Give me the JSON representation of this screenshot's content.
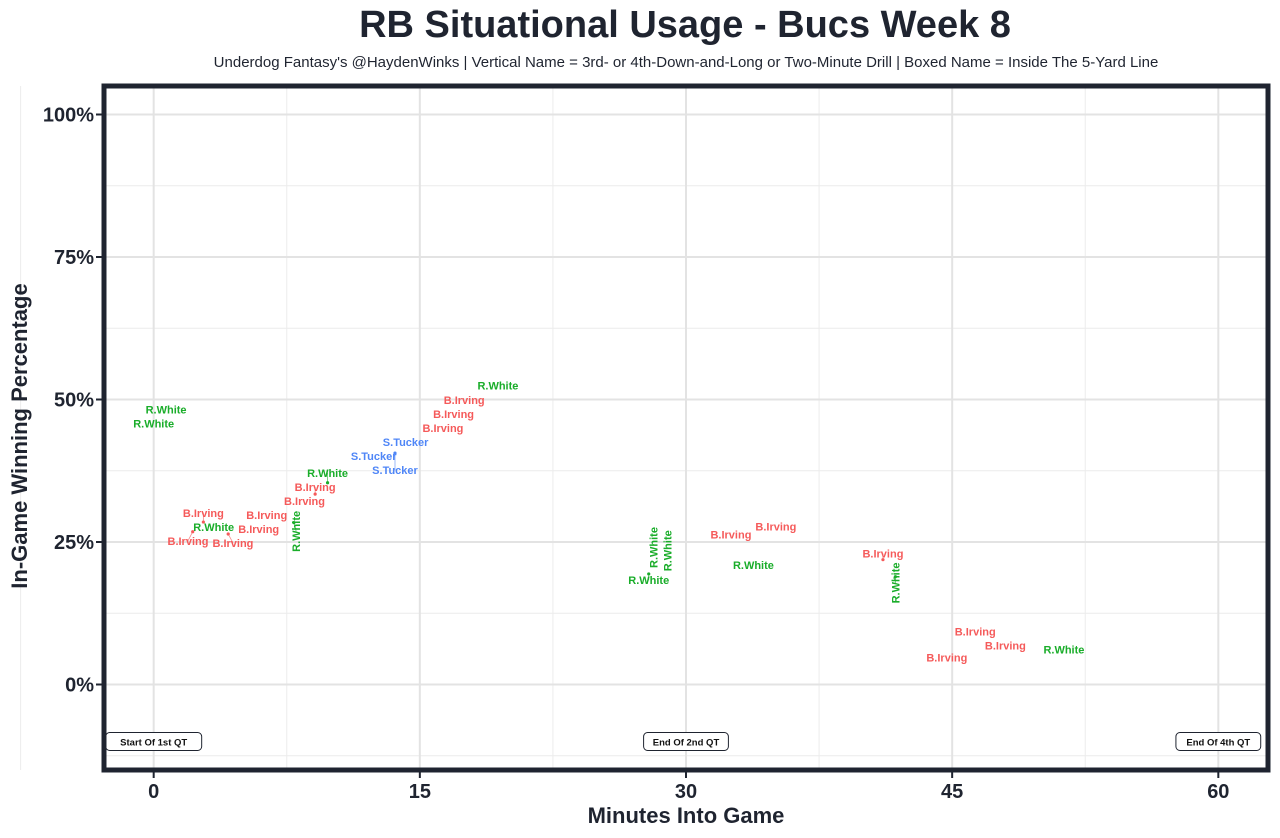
{
  "chart_data": {
    "type": "scatter",
    "title": "RB Situational Usage - Bucs Week 8",
    "subtitle": "Underdog Fantasy's @HaydenWinks | Vertical Name = 3rd- or 4th-Down-and-Long or Two-Minute Drill | Boxed Name = Inside The 5-Yard Line",
    "xlabel": "Minutes Into Game",
    "ylabel": "In-Game Winning Percentage",
    "xlim": [
      -2.8,
      62.8
    ],
    "ylim": [
      -15,
      105
    ],
    "xticks": [
      0,
      15,
      30,
      45,
      60
    ],
    "xtick_labels": [
      "0",
      "15",
      "30",
      "45",
      "60"
    ],
    "yticks": [
      0,
      25,
      50,
      75,
      100
    ],
    "ytick_labels": [
      "0%",
      "25%",
      "50%",
      "75%",
      "100%"
    ],
    "grid": true,
    "colors": {
      "R.White": "#1aad2a",
      "B.Irving": "#f55a5a",
      "S.Tucker": "#4f86f7"
    },
    "points": [
      {
        "label": "R.White",
        "x": 0.7,
        "y": 47.8,
        "vertical": false
      },
      {
        "label": "R.White",
        "x": 0.0,
        "y": 46.2,
        "vertical": false
      },
      {
        "label": "R.White",
        "x": 19.4,
        "y": 52.5,
        "vertical": false
      },
      {
        "label": "B.Irving",
        "x": 17.5,
        "y": 48.9,
        "vertical": false
      },
      {
        "label": "B.Irving",
        "x": 16.9,
        "y": 46.8,
        "vertical": false
      },
      {
        "label": "B.Irving",
        "x": 16.3,
        "y": 44.7,
        "vertical": false
      },
      {
        "label": "S.Tucker",
        "x": 14.2,
        "y": 41.5,
        "vertical": false
      },
      {
        "label": "S.Tucker",
        "x": 13.6,
        "y": 40.6,
        "vertical": false
      },
      {
        "label": "S.Tucker",
        "x": 12.4,
        "y": 39.9,
        "vertical": false
      },
      {
        "label": "R.White",
        "x": 9.8,
        "y": 35.4,
        "vertical": false
      },
      {
        "label": "B.Irving",
        "x": 9.1,
        "y": 33.4,
        "vertical": false
      },
      {
        "label": "B.Irving",
        "x": 8.5,
        "y": 32.6,
        "vertical": false
      },
      {
        "label": "R.White",
        "x": 7.9,
        "y": 28.4,
        "vertical": true
      },
      {
        "label": "B.Irving",
        "x": 6.5,
        "y": 29.4,
        "vertical": false
      },
      {
        "label": "B.Irving",
        "x": 5.9,
        "y": 27.3,
        "vertical": false
      },
      {
        "label": "B.Irving",
        "x": 2.8,
        "y": 28.5,
        "vertical": false
      },
      {
        "label": "R.White",
        "x": 3.4,
        "y": 27.7,
        "vertical": false
      },
      {
        "label": "B.Irving",
        "x": 2.2,
        "y": 26.8,
        "vertical": false
      },
      {
        "label": "B.Irving",
        "x": 4.2,
        "y": 26.4,
        "vertical": false
      },
      {
        "label": "R.White",
        "x": 28.4,
        "y": 23.5,
        "vertical": true
      },
      {
        "label": "R.White",
        "x": 28.7,
        "y": 22.9,
        "vertical": true
      },
      {
        "label": "R.White",
        "x": 27.9,
        "y": 19.4,
        "vertical": false
      },
      {
        "label": "B.Irving",
        "x": 32.7,
        "y": 26.3,
        "vertical": false
      },
      {
        "label": "B.Irving",
        "x": 34.9,
        "y": 27.7,
        "vertical": false
      },
      {
        "label": "R.White",
        "x": 33.8,
        "y": 21.0,
        "vertical": false
      },
      {
        "label": "B.Irving",
        "x": 41.1,
        "y": 21.9,
        "vertical": false
      },
      {
        "label": "R.White",
        "x": 41.8,
        "y": 18.9,
        "vertical": true
      },
      {
        "label": "B.Irving",
        "x": 46.3,
        "y": 9.3,
        "vertical": false
      },
      {
        "label": "B.Irving",
        "x": 48.0,
        "y": 6.8,
        "vertical": false
      },
      {
        "label": "B.Irving",
        "x": 44.7,
        "y": 4.7,
        "vertical": false
      },
      {
        "label": "R.White",
        "x": 51.3,
        "y": 6.1,
        "vertical": false
      }
    ],
    "annotations": [
      {
        "text": "Start Of 1st QT",
        "x": 0,
        "y": -10
      },
      {
        "text": "End Of 2nd QT",
        "x": 30,
        "y": -10
      },
      {
        "text": "End Of 4th QT",
        "x": 60,
        "y": -10
      }
    ]
  }
}
